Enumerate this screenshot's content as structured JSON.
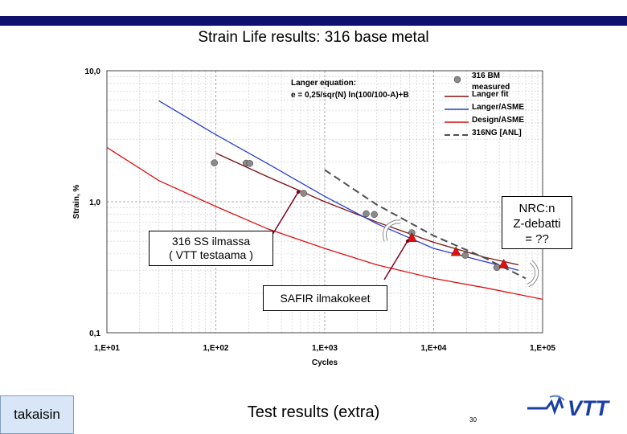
{
  "slide": {
    "title": "Strain Life results: 316 base metal",
    "back_button": "takaisin",
    "footer": "Test results (extra)",
    "page_number": "30",
    "logo_text": "VTT",
    "accent_color": "#10106e"
  },
  "callouts": {
    "ss_air": [
      "316 SS ilmassa",
      "( VTT testaama )"
    ],
    "nrc": [
      "NRC:n",
      "Z-debatti",
      "= ??"
    ],
    "safir": "SAFIR ilmakokeet"
  },
  "chart_data": {
    "type": "line",
    "xscale": "log",
    "yscale": "log",
    "xlim": [
      10,
      100000
    ],
    "ylim": [
      0.1,
      10
    ],
    "xlabel": "Cycles",
    "ylabel": "Strain, %",
    "xticks": [
      "1,E+01",
      "1,E+02",
      "1,E+03",
      "1,E+04",
      "1,E+05"
    ],
    "yticks": [
      "10,0",
      "1,0",
      "0,1"
    ],
    "grid": true,
    "legend_position": "top-right",
    "annotation": [
      "Langer equation:",
      "e = 0,25/sqr(N) ln(100/100-A)+B"
    ],
    "series": [
      {
        "name": "316 BM measured",
        "style": "marker",
        "color": "#8a8a8a",
        "x": [
          97,
          190,
          205,
          640,
          2400,
          2850,
          6300,
          19500,
          38000
        ],
        "y": [
          1.98,
          1.97,
          1.96,
          1.16,
          0.81,
          0.8,
          0.58,
          0.39,
          0.315
        ]
      },
      {
        "name": "Langer fit",
        "style": "line",
        "color": "#7a1010",
        "x": [
          100,
          300,
          1000,
          3000,
          10000,
          30000,
          60000
        ],
        "y": [
          2.35,
          1.55,
          1.0,
          0.7,
          0.49,
          0.375,
          0.33
        ]
      },
      {
        "name": "Langer/ASME",
        "style": "line",
        "color": "#2a3fd0",
        "x": [
          30,
          100,
          300,
          1000,
          3000,
          10000,
          60000
        ],
        "y": [
          5.9,
          3.25,
          1.95,
          1.1,
          0.68,
          0.44,
          0.3
        ]
      },
      {
        "name": "Design/ASME",
        "style": "line",
        "color": "#e01010",
        "x": [
          10,
          30,
          100,
          300,
          1000,
          3000,
          10000,
          30000,
          100000
        ],
        "y": [
          2.6,
          1.45,
          0.92,
          0.62,
          0.44,
          0.33,
          0.26,
          0.22,
          0.18
        ]
      },
      {
        "name": "316NG [ANL]",
        "style": "dashed",
        "color": "#505050",
        "x": [
          1000,
          3000,
          10000,
          30000,
          70000
        ],
        "y": [
          1.75,
          0.95,
          0.55,
          0.37,
          0.26
        ]
      }
    ],
    "markers": [
      {
        "style": "triangle",
        "color": "#e01010",
        "x": [
          6300,
          16000,
          44000
        ],
        "y": [
          0.525,
          0.41,
          0.33
        ]
      }
    ]
  }
}
